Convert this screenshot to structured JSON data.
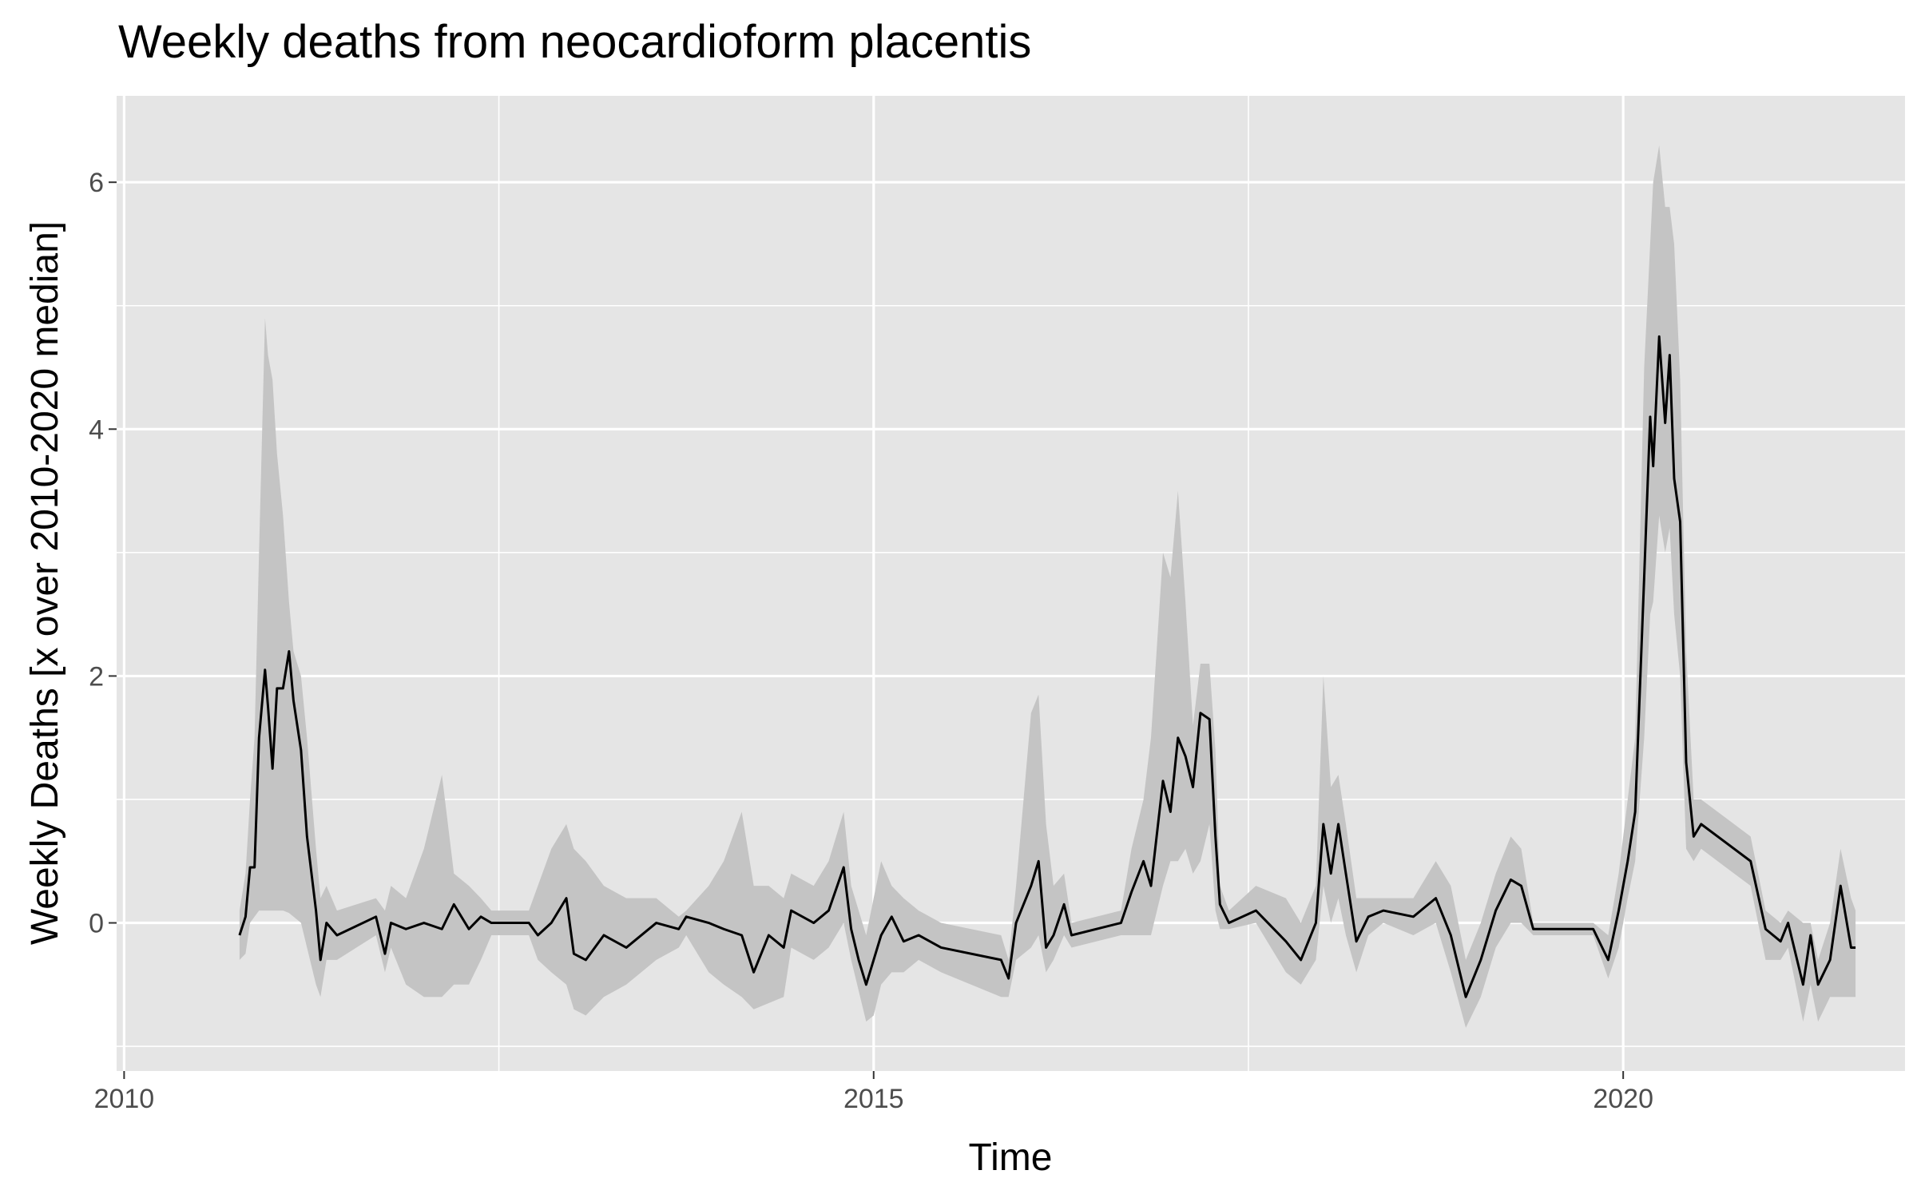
{
  "chart_data": {
    "type": "ribbon-line",
    "title": "Weekly deaths from neocardioform placentis",
    "x_label": "Time",
    "y_label": "Weekly Deaths [x over 2010-2020 median]",
    "xlim": [
      2009.95,
      2021.88
    ],
    "ylim": [
      -1.2,
      6.7
    ],
    "xticks": [
      2010,
      2015,
      2020
    ],
    "yticks": [
      0,
      2,
      4,
      6
    ],
    "xminor": [
      2012.5,
      2017.5
    ],
    "yminor": [
      -1,
      1,
      3,
      5
    ],
    "grid": true,
    "color": "#000000",
    "band_color": "#c4c4c4",
    "panel_color": "#e5e5e5",
    "x": [
      2010.77,
      2010.81,
      2010.84,
      2010.87,
      2010.9,
      2010.94,
      2010.96,
      2010.99,
      2011.02,
      2011.06,
      2011.1,
      2011.13,
      2011.18,
      2011.22,
      2011.28,
      2011.31,
      2011.35,
      2011.42,
      2011.68,
      2011.74,
      2011.78,
      2011.88,
      2012.0,
      2012.12,
      2012.2,
      2012.3,
      2012.38,
      2012.45,
      2012.7,
      2012.76,
      2012.85,
      2012.95,
      2013.0,
      2013.08,
      2013.2,
      2013.35,
      2013.55,
      2013.7,
      2013.75,
      2013.9,
      2014.0,
      2014.12,
      2014.2,
      2014.3,
      2014.4,
      2014.45,
      2014.6,
      2014.7,
      2014.8,
      2014.85,
      2014.9,
      2014.95,
      2015.0,
      2015.05,
      2015.12,
      2015.2,
      2015.3,
      2015.45,
      2015.85,
      2015.9,
      2015.95,
      2016.05,
      2016.1,
      2016.15,
      2016.2,
      2016.27,
      2016.32,
      2016.65,
      2016.72,
      2016.8,
      2016.85,
      2016.93,
      2016.98,
      2017.03,
      2017.08,
      2017.13,
      2017.18,
      2017.24,
      2017.28,
      2017.31,
      2017.37,
      2017.55,
      2017.75,
      2017.85,
      2017.95,
      2018.0,
      2018.05,
      2018.1,
      2018.15,
      2018.22,
      2018.3,
      2018.4,
      2018.6,
      2018.75,
      2018.85,
      2018.95,
      2019.05,
      2019.15,
      2019.25,
      2019.32,
      2019.4,
      2019.8,
      2019.9,
      2019.97,
      2020.03,
      2020.08,
      2020.14,
      2020.18,
      2020.2,
      2020.24,
      2020.28,
      2020.31,
      2020.34,
      2020.38,
      2020.42,
      2020.47,
      2020.52,
      2020.85,
      2020.95,
      2021.05,
      2021.1,
      2021.2,
      2021.25,
      2021.3,
      2021.38,
      2021.45,
      2021.52,
      2021.55
    ],
    "values": [
      -0.1,
      0.05,
      0.45,
      0.45,
      1.5,
      2.05,
      1.75,
      1.25,
      1.9,
      1.9,
      2.2,
      1.8,
      1.4,
      0.7,
      0.1,
      -0.3,
      0.0,
      -0.1,
      0.05,
      -0.25,
      0.0,
      -0.05,
      0.0,
      -0.05,
      0.15,
      -0.05,
      0.05,
      0.0,
      0.0,
      -0.1,
      0.0,
      0.2,
      -0.25,
      -0.3,
      -0.1,
      -0.2,
      0.0,
      -0.05,
      0.05,
      0.0,
      -0.05,
      -0.1,
      -0.4,
      -0.1,
      -0.2,
      0.1,
      0.0,
      0.1,
      0.45,
      -0.05,
      -0.3,
      -0.5,
      -0.3,
      -0.1,
      0.05,
      -0.15,
      -0.1,
      -0.2,
      -0.3,
      -0.45,
      0.0,
      0.3,
      0.5,
      -0.2,
      -0.1,
      0.15,
      -0.1,
      0.0,
      0.25,
      0.5,
      0.3,
      1.15,
      0.9,
      1.5,
      1.35,
      1.1,
      1.7,
      1.65,
      0.7,
      0.15,
      0.0,
      0.1,
      -0.15,
      -0.3,
      0.0,
      0.8,
      0.4,
      0.8,
      0.4,
      -0.15,
      0.05,
      0.1,
      0.05,
      0.2,
      -0.1,
      -0.6,
      -0.3,
      0.1,
      0.35,
      0.3,
      -0.05,
      -0.05,
      -0.3,
      0.1,
      0.5,
      0.9,
      2.8,
      4.1,
      3.7,
      4.75,
      4.05,
      4.6,
      3.6,
      3.25,
      1.3,
      0.7,
      0.8,
      0.5,
      -0.05,
      -0.15,
      0.0,
      -0.5,
      -0.1,
      -0.5,
      -0.3,
      0.3,
      -0.2,
      -0.2
    ],
    "lower": [
      -0.3,
      -0.25,
      0.0,
      0.05,
      0.1,
      0.1,
      0.1,
      0.1,
      0.1,
      0.1,
      0.08,
      0.05,
      0.0,
      -0.2,
      -0.5,
      -0.6,
      -0.3,
      -0.3,
      -0.1,
      -0.4,
      -0.2,
      -0.5,
      -0.6,
      -0.6,
      -0.5,
      -0.5,
      -0.3,
      -0.1,
      -0.1,
      -0.3,
      -0.4,
      -0.5,
      -0.7,
      -0.75,
      -0.6,
      -0.5,
      -0.3,
      -0.2,
      -0.1,
      -0.4,
      -0.5,
      -0.6,
      -0.7,
      -0.65,
      -0.6,
      -0.2,
      -0.3,
      -0.2,
      0.0,
      -0.3,
      -0.55,
      -0.8,
      -0.75,
      -0.5,
      -0.4,
      -0.4,
      -0.3,
      -0.4,
      -0.6,
      -0.6,
      -0.3,
      -0.2,
      -0.1,
      -0.4,
      -0.3,
      -0.1,
      -0.2,
      -0.1,
      -0.1,
      -0.1,
      -0.1,
      0.3,
      0.5,
      0.5,
      0.6,
      0.4,
      0.5,
      0.8,
      0.1,
      -0.05,
      -0.05,
      0.0,
      -0.4,
      -0.5,
      -0.3,
      0.3,
      0.0,
      0.2,
      -0.1,
      -0.4,
      -0.1,
      0.0,
      -0.1,
      0.0,
      -0.4,
      -0.85,
      -0.6,
      -0.2,
      0.0,
      0.0,
      -0.1,
      -0.1,
      -0.45,
      -0.2,
      0.2,
      0.5,
      1.5,
      2.5,
      2.6,
      3.3,
      3.0,
      3.2,
      2.5,
      2.0,
      0.6,
      0.5,
      0.6,
      0.3,
      -0.3,
      -0.3,
      -0.2,
      -0.8,
      -0.5,
      -0.8,
      -0.6,
      -0.6,
      -0.6,
      -0.6
    ],
    "upper": [
      0.1,
      0.4,
      1.0,
      1.5,
      3.0,
      4.9,
      4.6,
      4.4,
      3.8,
      3.3,
      2.6,
      2.2,
      2.0,
      1.5,
      0.6,
      0.2,
      0.3,
      0.1,
      0.2,
      0.1,
      0.3,
      0.2,
      0.6,
      1.2,
      0.4,
      0.3,
      0.2,
      0.1,
      0.1,
      0.3,
      0.6,
      0.8,
      0.6,
      0.5,
      0.3,
      0.2,
      0.2,
      0.05,
      0.1,
      0.3,
      0.5,
      0.9,
      0.3,
      0.3,
      0.2,
      0.4,
      0.3,
      0.5,
      0.9,
      0.3,
      0.1,
      -0.1,
      0.2,
      0.5,
      0.3,
      0.2,
      0.1,
      0.0,
      -0.1,
      -0.3,
      0.3,
      1.7,
      1.85,
      0.8,
      0.3,
      0.4,
      0.0,
      0.1,
      0.6,
      1.0,
      1.5,
      3.0,
      2.8,
      3.5,
      2.6,
      1.6,
      2.1,
      2.1,
      1.4,
      0.3,
      0.1,
      0.3,
      0.2,
      0.0,
      0.3,
      2.0,
      1.1,
      1.2,
      0.8,
      0.2,
      0.2,
      0.2,
      0.2,
      0.5,
      0.3,
      -0.3,
      0.0,
      0.4,
      0.7,
      0.6,
      0.0,
      0.0,
      -0.1,
      0.4,
      1.0,
      1.5,
      4.5,
      5.5,
      6.0,
      6.3,
      5.8,
      5.8,
      5.5,
      4.4,
      2.2,
      1.0,
      1.0,
      0.7,
      0.1,
      0.0,
      0.1,
      0.0,
      0.0,
      -0.3,
      0.0,
      0.6,
      0.2,
      0.1
    ]
  }
}
